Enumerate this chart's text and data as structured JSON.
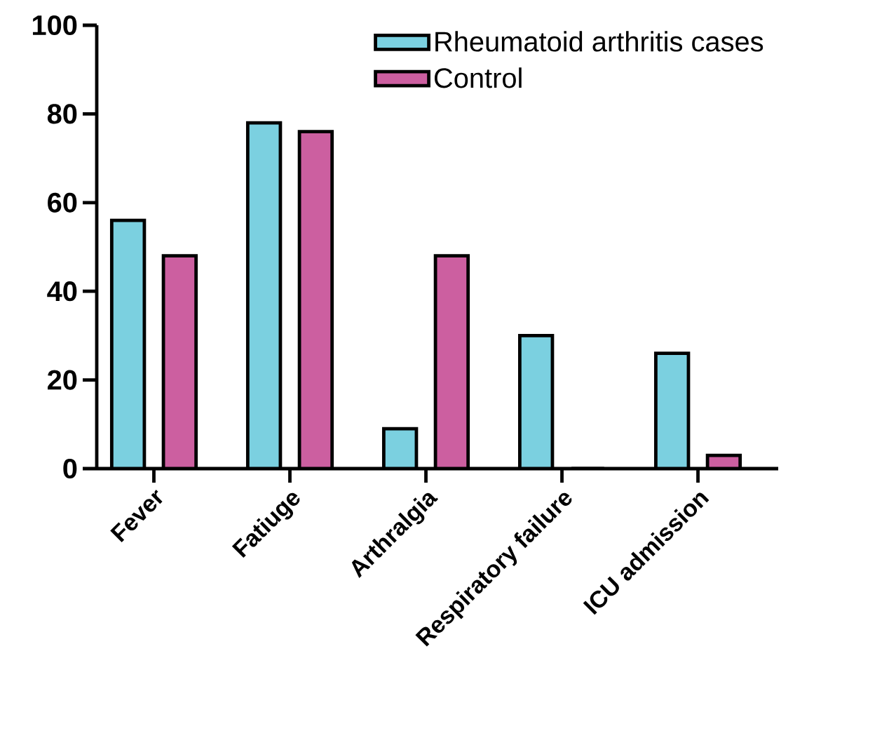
{
  "chart_data": {
    "type": "bar",
    "categories": [
      "Fever",
      "Fatiuge",
      "Arthralgia",
      "Respiratory failure",
      "ICU admission"
    ],
    "series": [
      {
        "name": "Rheumatoid arthritis cases",
        "color": "#7bd0e0",
        "values": [
          56,
          78,
          9,
          30,
          26
        ]
      },
      {
        "name": "Control",
        "color": "#cc5fa0",
        "values": [
          48,
          76,
          48,
          0,
          3
        ]
      }
    ],
    "ylim": [
      0,
      100
    ],
    "yticks": [
      0,
      20,
      40,
      60,
      80,
      100
    ],
    "grid": false,
    "legend": "top right"
  }
}
